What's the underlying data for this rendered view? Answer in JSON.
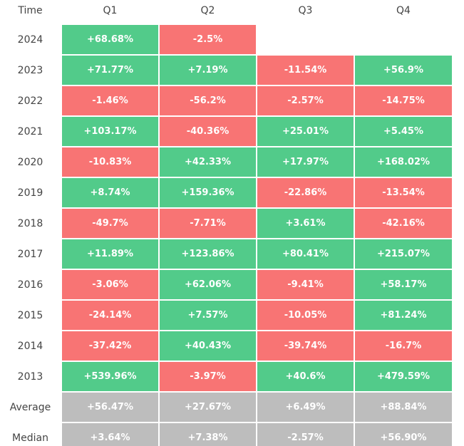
{
  "table": {
    "header": [
      "Time",
      "Q1",
      "Q2",
      "Q3",
      "Q4"
    ],
    "rows": [
      [
        "2024",
        "+68.68%",
        "-2.5%",
        null,
        null
      ],
      [
        "2023",
        "+71.77%",
        "+7.19%",
        "-11.54%",
        "+56.9%"
      ],
      [
        "2022",
        "-1.46%",
        "-56.2%",
        "-2.57%",
        "-14.75%"
      ],
      [
        "2021",
        "+103.17%",
        "-40.36%",
        "+25.01%",
        "+5.45%"
      ],
      [
        "2020",
        "-10.83%",
        "+42.33%",
        "+17.97%",
        "+168.02%"
      ],
      [
        "2019",
        "+8.74%",
        "+159.36%",
        "-22.86%",
        "-13.54%"
      ],
      [
        "2018",
        "-49.7%",
        "-7.71%",
        "+3.61%",
        "-42.16%"
      ],
      [
        "2017",
        "+11.89%",
        "+123.86%",
        "+80.41%",
        "+215.07%"
      ],
      [
        "2016",
        "-3.06%",
        "+62.06%",
        "-9.41%",
        "+58.17%"
      ],
      [
        "2015",
        "-24.14%",
        "+7.57%",
        "-10.05%",
        "+81.24%"
      ],
      [
        "2014",
        "-37.42%",
        "+40.43%",
        "-39.74%",
        "-16.7%"
      ],
      [
        "2013",
        "+539.96%",
        "-3.97%",
        "+40.6%",
        "+479.59%"
      ]
    ],
    "summary_rows": [
      [
        "Average",
        "+56.47%",
        "+27.67%",
        "+6.49%",
        "+88.84%"
      ],
      [
        "Median",
        "+3.64%",
        "+7.38%",
        "-2.57%",
        "+56.90%"
      ]
    ]
  },
  "colors": {
    "positive": "#52cb8a",
    "negative": "#f87474",
    "summary": "#bdbdbd"
  }
}
